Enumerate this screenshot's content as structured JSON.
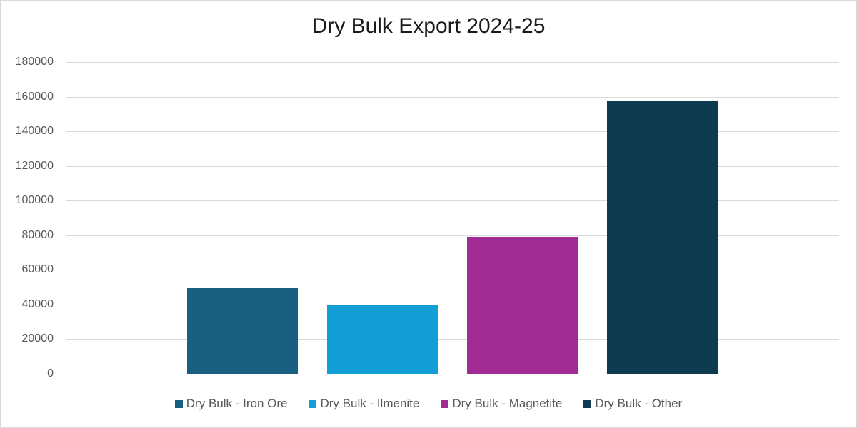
{
  "chart_data": {
    "type": "bar",
    "title": "Dry Bulk Export 2024-25",
    "xlabel": "",
    "ylabel": "",
    "ylim": [
      0,
      180000
    ],
    "yticks": [
      0,
      20000,
      40000,
      60000,
      80000,
      100000,
      120000,
      140000,
      160000,
      180000
    ],
    "grid": true,
    "legend_position": "bottom",
    "categories": [
      ""
    ],
    "series": [
      {
        "name": "Dry Bulk - Iron Ore",
        "values": [
          49300
        ],
        "color": "#185F80"
      },
      {
        "name": "Dry Bulk - Ilmenite",
        "values": [
          39800
        ],
        "color": "#139ED6"
      },
      {
        "name": "Dry Bulk - Magnetite",
        "values": [
          79000
        ],
        "color": "#A02B93"
      },
      {
        "name": "Dry Bulk - Other",
        "values": [
          157500
        ],
        "color": "#0D3A4F"
      }
    ]
  }
}
